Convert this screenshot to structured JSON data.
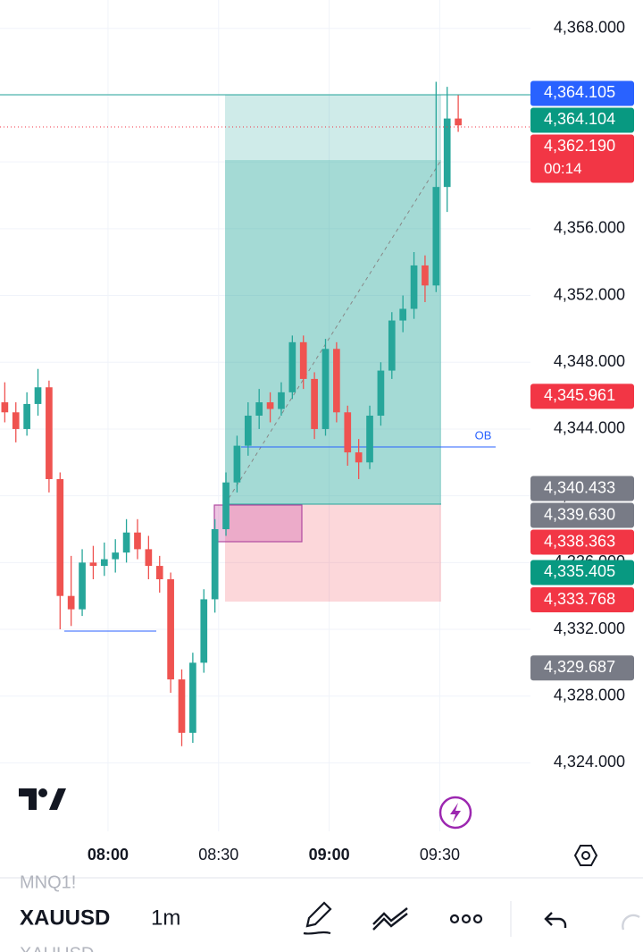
{
  "chart_data": {
    "type": "candlestick",
    "x": [
      452,
      455,
      458,
      461,
      464,
      467,
      470,
      473,
      476,
      479,
      482,
      485,
      488,
      491,
      494,
      497,
      500,
      503,
      506,
      509,
      512,
      515,
      518,
      521,
      524,
      527,
      530,
      533,
      536,
      539,
      542,
      545,
      548,
      551,
      554,
      557,
      560,
      563,
      566,
      569,
      572,
      575
    ],
    "open": [
      4345.6,
      4345.0,
      4344.0,
      4345.5,
      4346.5,
      4341.0,
      4334.0,
      4333.2,
      4336.0,
      4335.8,
      4336.2,
      4336.6,
      4337.8,
      4336.8,
      4335.8,
      4335.0,
      4329.0,
      4325.8,
      4330.0,
      4333.8,
      4338.0,
      4340.8,
      4343.0,
      4344.8,
      4345.6,
      4345.2,
      4346.2,
      4349.2,
      4347.0,
      4344.0,
      4348.8,
      4345.0,
      4342.6,
      4342.0,
      4344.8,
      4347.5,
      4350.5,
      4351.2,
      4353.8,
      4352.6,
      4358.5,
      4362.6
    ],
    "high": [
      4346.8,
      4345.6,
      4346.2,
      4347.6,
      4346.9,
      4341.4,
      4336.4,
      4336.8,
      4337.0,
      4337.2,
      4337.4,
      4338.6,
      4338.6,
      4337.6,
      4336.4,
      4335.4,
      4329.6,
      4330.6,
      4334.4,
      4338.6,
      4341.4,
      4343.6,
      4345.6,
      4346.4,
      4346.2,
      4346.8,
      4349.6,
      4349.6,
      4347.4,
      4349.4,
      4349.2,
      4345.4,
      4343.4,
      4345.4,
      4348.0,
      4351.0,
      4352.0,
      4354.6,
      4354.4,
      4364.8,
      4364.5,
      4364.0
    ],
    "low": [
      4344.4,
      4343.2,
      4343.6,
      4344.8,
      4340.2,
      4332.0,
      4332.2,
      4332.8,
      4335.0,
      4335.2,
      4335.4,
      4336.0,
      4336.2,
      4335.0,
      4334.2,
      4328.2,
      4325.0,
      4325.2,
      4329.4,
      4333.0,
      4337.6,
      4340.2,
      4342.4,
      4344.0,
      4344.4,
      4344.8,
      4345.8,
      4346.4,
      4343.4,
      4343.6,
      4344.4,
      4341.8,
      4341.0,
      4341.6,
      4344.2,
      4347.0,
      4349.8,
      4350.6,
      4351.6,
      4352.2,
      4357.0,
      4361.8
    ],
    "close": [
      4345.0,
      4344.0,
      4345.5,
      4346.5,
      4341.0,
      4334.0,
      4333.2,
      4336.0,
      4335.8,
      4336.2,
      4336.6,
      4337.8,
      4336.8,
      4335.8,
      4335.0,
      4329.0,
      4325.8,
      4330.0,
      4333.8,
      4338.0,
      4340.8,
      4343.0,
      4344.8,
      4345.6,
      4345.2,
      4346.2,
      4349.2,
      4347.0,
      4344.0,
      4348.8,
      4345.0,
      4342.6,
      4342.0,
      4344.8,
      4347.5,
      4350.5,
      4351.2,
      4353.8,
      4352.6,
      4358.5,
      4362.6,
      4362.19
    ],
    "up_color": "#26a69a",
    "down_color": "#ef5350",
    "xlim": [
      450.7,
      594.6
    ],
    "xticks": [
      {
        "value": 480,
        "label": "08:00",
        "bold": true
      },
      {
        "value": 510,
        "label": "08:30",
        "bold": false
      },
      {
        "value": 540,
        "label": "09:00",
        "bold": true
      },
      {
        "value": 570,
        "label": "09:30",
        "bold": false
      }
    ],
    "ylim": [
      4319.9,
      4369.7
    ],
    "yticks": [
      {
        "value": 4324,
        "label": "4,324.000"
      },
      {
        "value": 4328,
        "label": "4,328.000"
      },
      {
        "value": 4332,
        "label": "4,332.000"
      },
      {
        "value": 4336,
        "label": "4,336.000"
      },
      {
        "value": 4340,
        "label": "4,340.000"
      },
      {
        "value": 4344,
        "label": "4,344.000"
      },
      {
        "value": 4348,
        "label": "4,348.000"
      },
      {
        "value": 4352,
        "label": "4,352.000"
      },
      {
        "value": 4356,
        "label": "4,356.000"
      },
      {
        "value": 4360,
        "label": "4,360.000"
      },
      {
        "value": 4364,
        "label": "4,364.000"
      },
      {
        "value": 4368,
        "label": "4,368.000"
      }
    ],
    "grid": true,
    "price_labels": [
      {
        "value": 4364.105,
        "label": "4,364.105",
        "color": "#2962ff"
      },
      {
        "value": 4364.104,
        "label": "4,364.104",
        "color": "#089981"
      },
      {
        "value": 4362.19,
        "label": "4,362.190",
        "countdown": "00:14",
        "color": "#f23645"
      },
      {
        "value": 4345.961,
        "label": "4,345.961",
        "color": "#f23645"
      },
      {
        "value": 4340.433,
        "label": "4,340.433",
        "color": "#787b86"
      },
      {
        "value": 4339.63,
        "label": "4,339.630",
        "color": "#787b86"
      },
      {
        "value": 4338.363,
        "label": "4,338.363",
        "color": "#f23645"
      },
      {
        "value": 4335.405,
        "label": "4,335.405",
        "color": "#089981"
      },
      {
        "value": 4333.768,
        "label": "4,333.768",
        "color": "#f23645"
      },
      {
        "value": 4329.687,
        "label": "4,329.687",
        "color": "#787b86"
      }
    ],
    "ob_label": "OB"
  },
  "toolbar": {
    "previous_symbol": "MNQ1!",
    "symbol": "XAUUSD",
    "interval": "1m",
    "next_symbol": "XAUUSD"
  }
}
